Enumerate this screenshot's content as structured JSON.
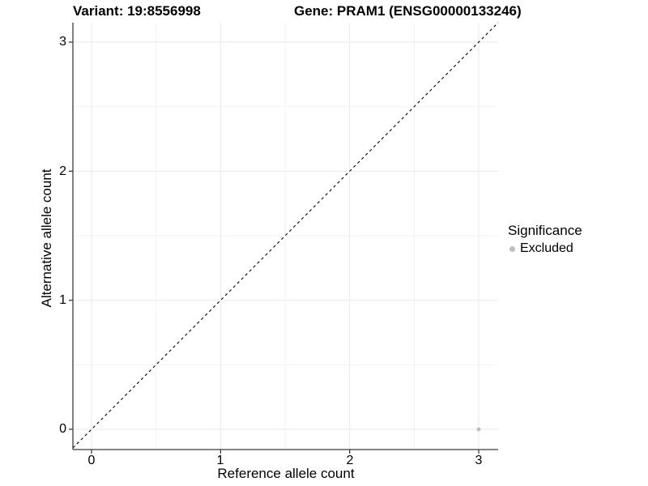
{
  "figure": {
    "titles": {
      "variant": "Variant: 19:8556998",
      "gene": "Gene: PRAM1 (ENSG00000133246)"
    }
  },
  "axes": {
    "x": {
      "label": "Reference allele count",
      "tick_labels": [
        "0",
        "1",
        "2",
        "3"
      ]
    },
    "y": {
      "label": "Alternative allele count",
      "tick_labels": [
        "0",
        "1",
        "2",
        "3"
      ]
    }
  },
  "legend": {
    "title": "Significance",
    "items": [
      {
        "label": "Excluded",
        "color": "#bdbdbd"
      }
    ]
  },
  "chart_data": {
    "type": "scatter",
    "title": "Variant: 19:8556998 | Gene: PRAM1 (ENSG00000133246)",
    "xlabel": "Reference allele count",
    "ylabel": "Alternative allele count",
    "xlim": [
      -0.15,
      3.15
    ],
    "ylim": [
      -0.15,
      3.15
    ],
    "x_ticks": [
      0,
      1,
      2,
      3
    ],
    "y_ticks": [
      0,
      1,
      2,
      3
    ],
    "x_minor_ticks": [
      0.5,
      1.5,
      2.5
    ],
    "y_minor_ticks": [
      0.5,
      1.5,
      2.5
    ],
    "grid": "major+minor",
    "legend_position": "right",
    "series": [
      {
        "name": "Excluded",
        "color": "#bdbdbd",
        "marker": "circle",
        "points": [
          {
            "x": 3,
            "y": 0
          }
        ]
      }
    ],
    "reference_line": {
      "kind": "identity",
      "equation": "y = x",
      "style": "dashed",
      "color": "#000000"
    },
    "colors": {
      "background": "#ffffff",
      "grid_major": "#e9e9e9",
      "grid_minor": "#f3f3f3",
      "axis": "#3c3c3c",
      "tick_text": "#000000"
    }
  }
}
